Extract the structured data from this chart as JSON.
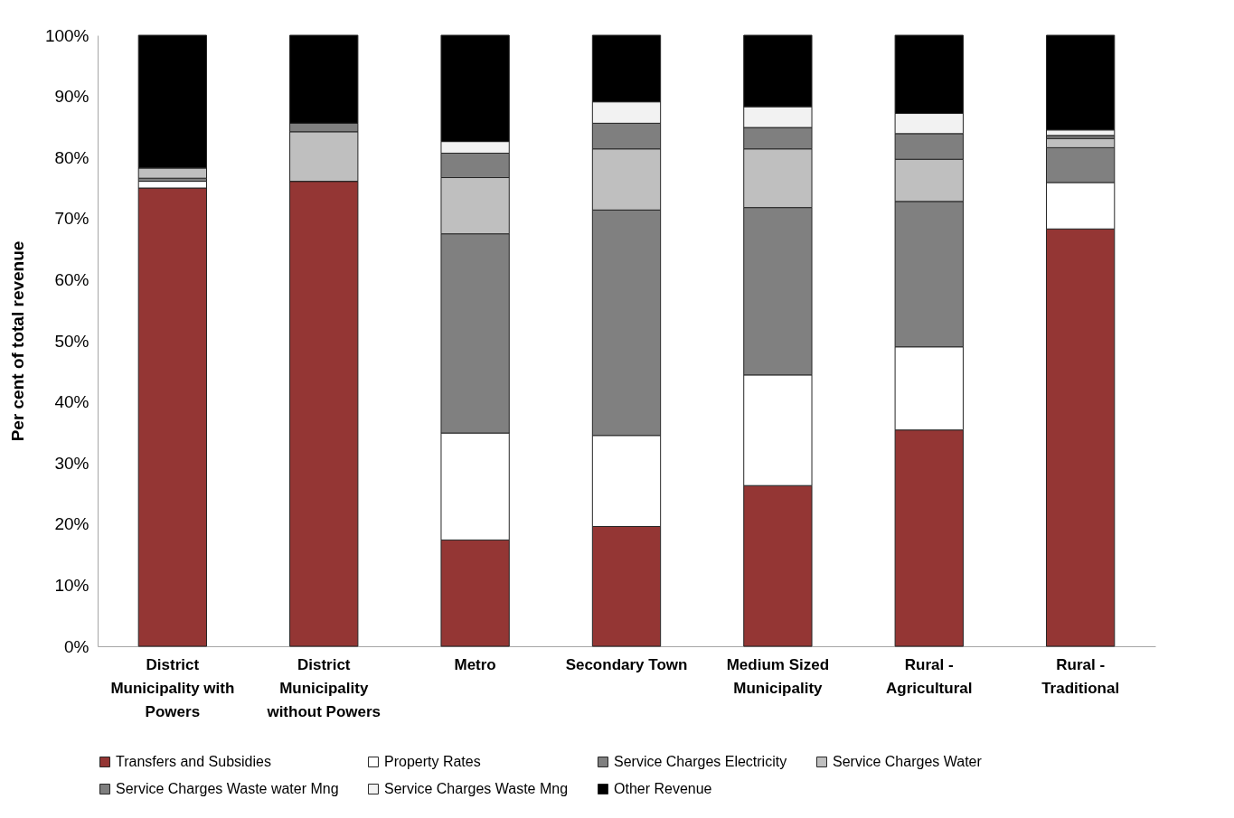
{
  "chart_data": {
    "type": "bar",
    "stacked": true,
    "ylabel": "Per cent of total revenue",
    "categories": [
      "District Municipality with Powers",
      "District Municipality without Powers",
      "Metro",
      "Secondary Town",
      "Medium Sized Municipality",
      "Rural - Agricultural",
      "Rural - Traditional"
    ],
    "series": [
      {
        "name": "Transfers and Subsidies",
        "color": "#943634",
        "values": [
          75,
          76.1,
          17.4,
          19.6,
          26.3,
          35.4,
          68.3
        ]
      },
      {
        "name": "Property Rates",
        "color": "#ffffff",
        "values": [
          1.1,
          0,
          17.5,
          14.9,
          18.1,
          13.6,
          7.6
        ]
      },
      {
        "name": "Service Charges Electricity",
        "color": "#808080",
        "values": [
          0.5,
          0,
          32.6,
          36.9,
          27.4,
          23.8,
          5.7
        ]
      },
      {
        "name": "Service Charges Water",
        "color": "#bfbfbf",
        "values": [
          1.7,
          8.1,
          9.2,
          10.0,
          9.6,
          6.9,
          1.5
        ]
      },
      {
        "name": "Service Charges Waste water Mng",
        "color": "#7f7f7f",
        "values": [
          0,
          1.4,
          4.0,
          4.2,
          3.5,
          4.2,
          0.5
        ]
      },
      {
        "name": "Service Charges Waste Mng",
        "color": "#f2f2f2",
        "values": [
          0,
          0,
          1.9,
          3.5,
          3.4,
          3.3,
          0.9
        ]
      },
      {
        "name": "Other Revenue",
        "color": "#000000",
        "values": [
          21.7,
          14.4,
          17.4,
          10.9,
          11.7,
          12.8,
          15.5
        ]
      }
    ],
    "ylim": [
      0,
      100
    ],
    "yticks": [
      {
        "value": 0,
        "label": "0%"
      },
      {
        "value": 10,
        "label": "10%"
      },
      {
        "value": 20,
        "label": "20%"
      },
      {
        "value": 30,
        "label": "30%"
      },
      {
        "value": 40,
        "label": "40%"
      },
      {
        "value": 50,
        "label": "50%"
      },
      {
        "value": 60,
        "label": "60%"
      },
      {
        "value": 70,
        "label": "70%"
      },
      {
        "value": 80,
        "label": "80%"
      },
      {
        "value": 90,
        "label": "90%"
      },
      {
        "value": 100,
        "label": "100%"
      }
    ],
    "grid": false,
    "legend": "bottom"
  }
}
